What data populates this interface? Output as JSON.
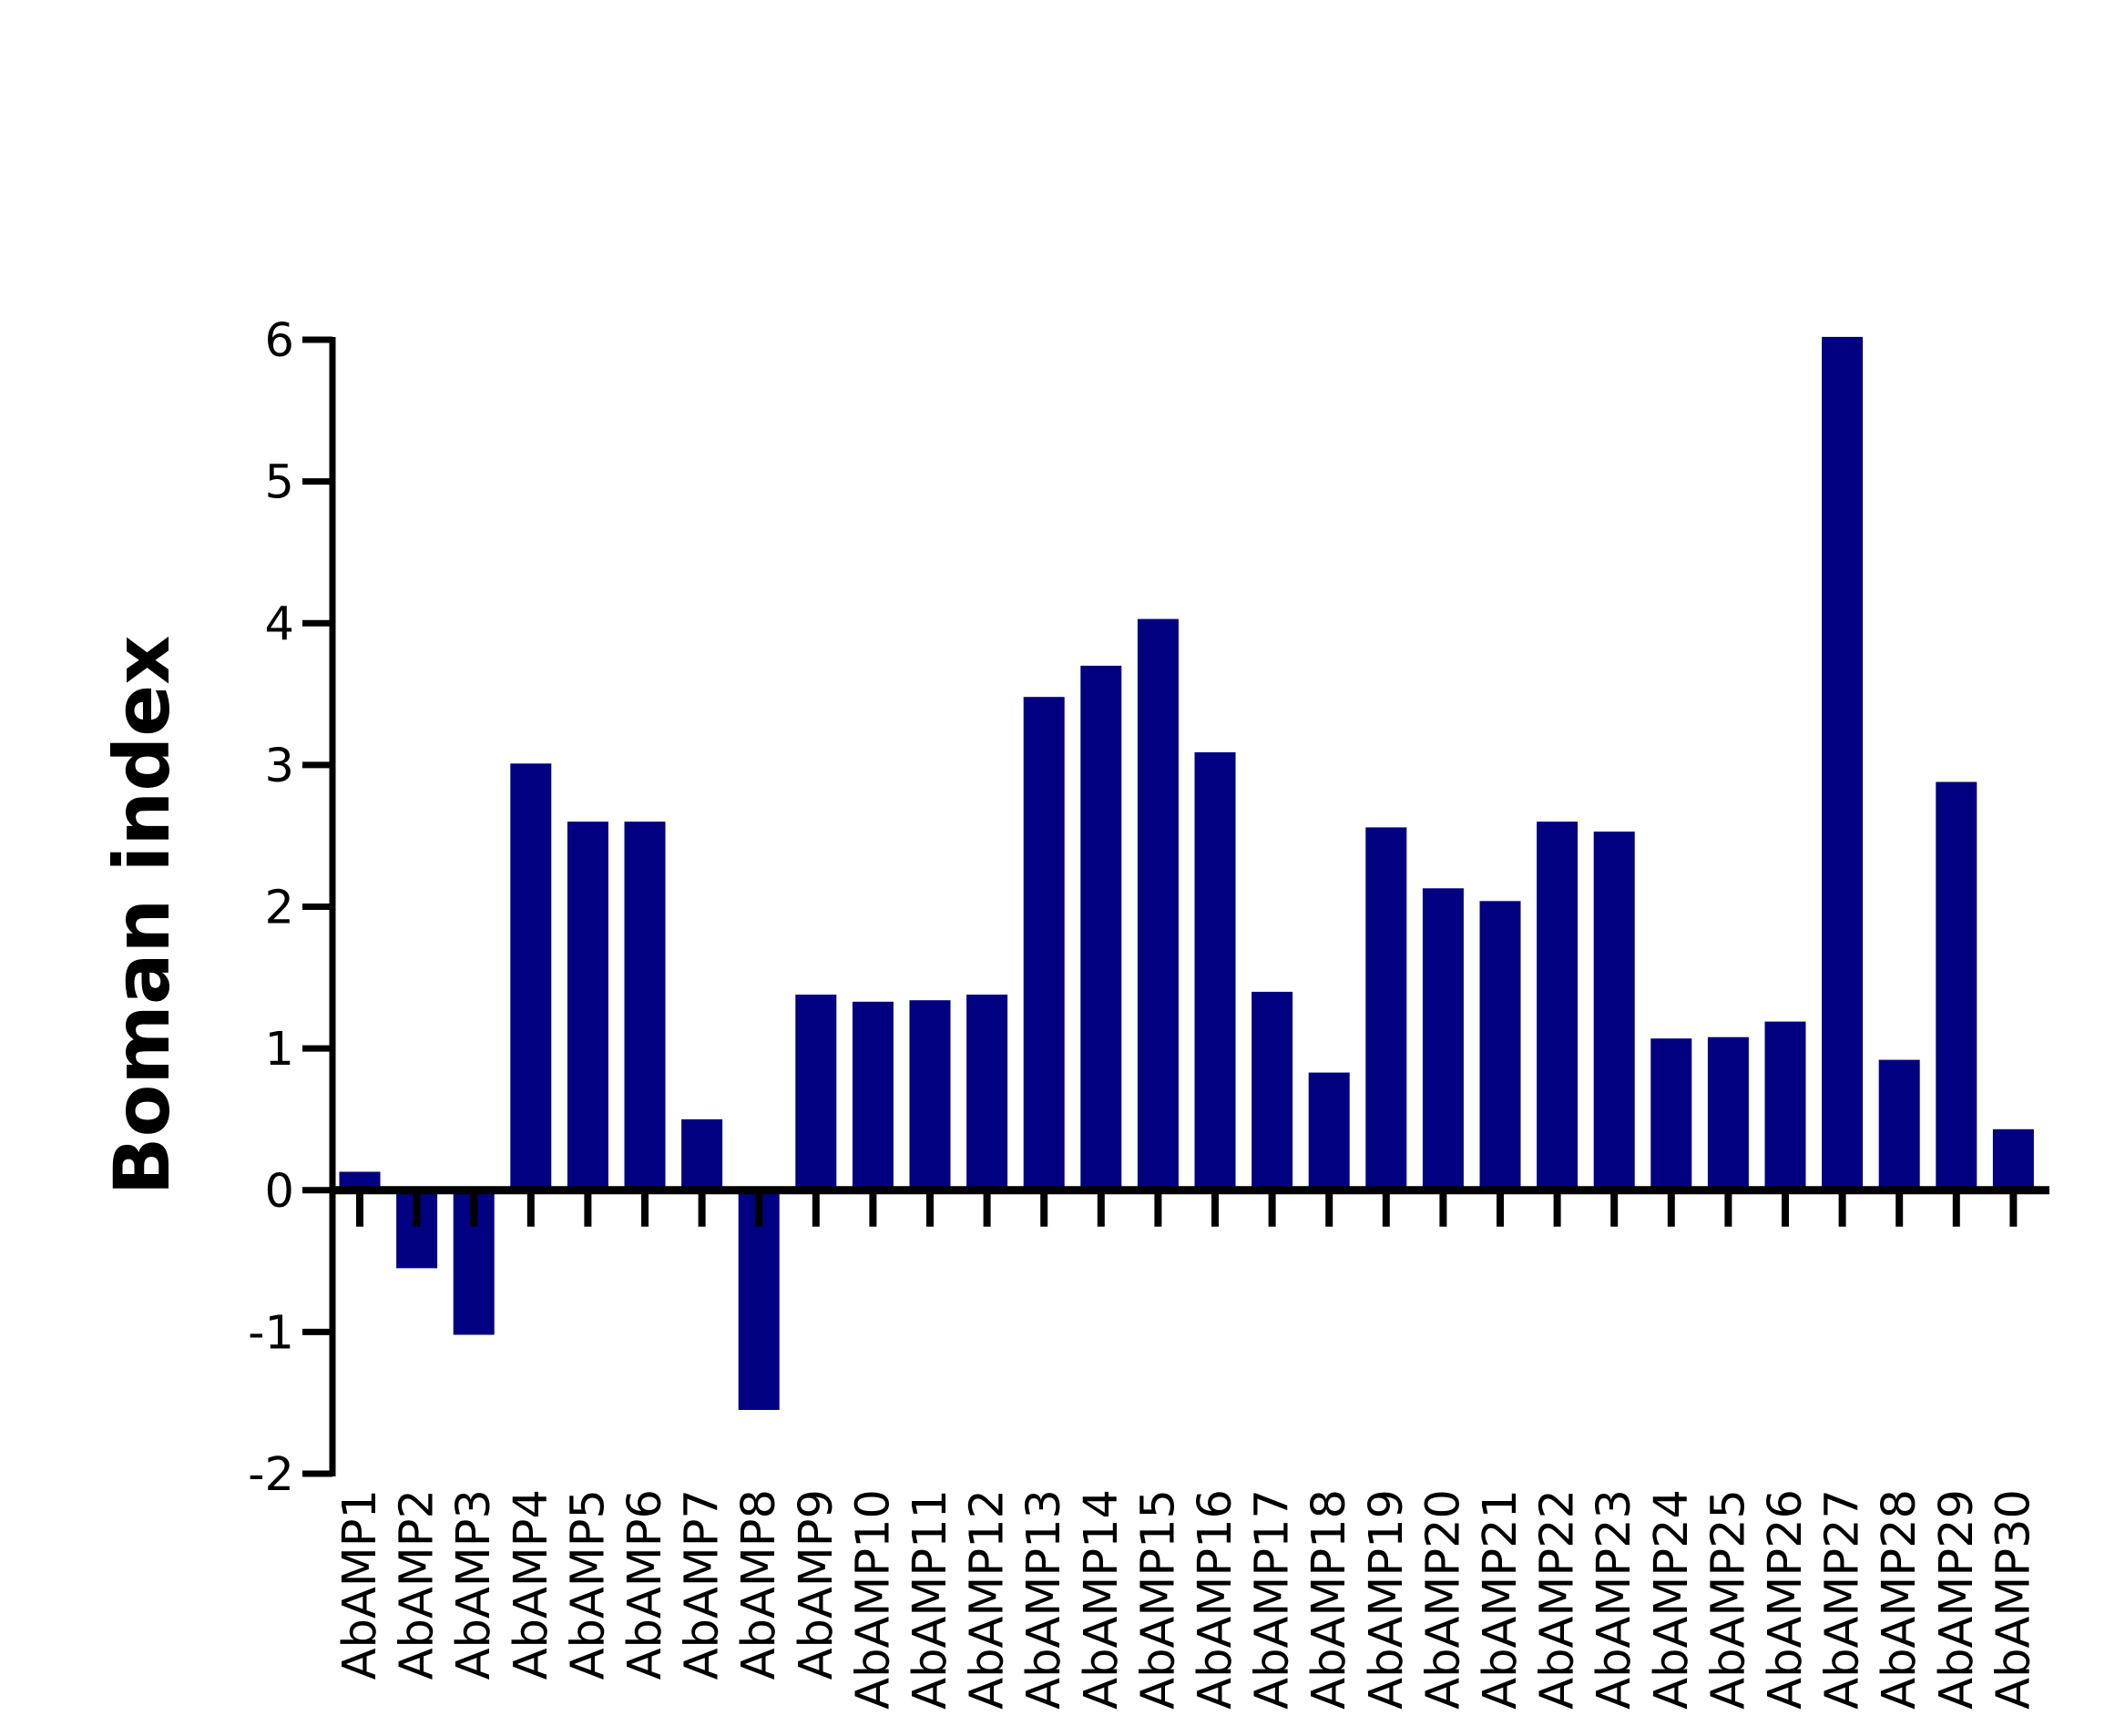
{
  "chart_data": {
    "type": "bar",
    "title": "",
    "xlabel": "",
    "ylabel": "Boman index",
    "ylim": [
      -2,
      6
    ],
    "yticks": [
      -2,
      -1,
      0,
      1,
      2,
      3,
      4,
      5,
      6
    ],
    "grid": false,
    "legend": "none",
    "bar_color": "#000080",
    "axis_color": "#000000",
    "categories": [
      "AbAMP1",
      "AbAMP2",
      "AbAMP3",
      "AbAMP4",
      "AbAMP5",
      "AbAMP6",
      "AbAMP7",
      "AbAMP8",
      "AbAMP9",
      "AbAMP10",
      "AbAMP11",
      "AbAMP12",
      "AbAMP13",
      "AbAMP14",
      "AbAMP15",
      "AbAMP16",
      "AbAMP17",
      "AbAMP18",
      "AbAMP19",
      "AbAMP20",
      "AbAMP21",
      "AbAMP22",
      "AbAMP23",
      "AbAMP24",
      "AbAMP25",
      "AbAMP26",
      "AbAMP27",
      "AbAMP28",
      "AbAMP29",
      "AbAMP30"
    ],
    "values": [
      0.13,
      -0.55,
      -1.02,
      3.01,
      2.6,
      2.6,
      0.5,
      -1.55,
      1.38,
      1.33,
      1.34,
      1.38,
      3.48,
      3.7,
      4.03,
      3.09,
      1.4,
      0.83,
      2.56,
      2.13,
      2.04,
      2.6,
      2.53,
      1.07,
      1.08,
      1.19,
      6.02,
      0.92,
      2.88,
      0.43
    ]
  }
}
